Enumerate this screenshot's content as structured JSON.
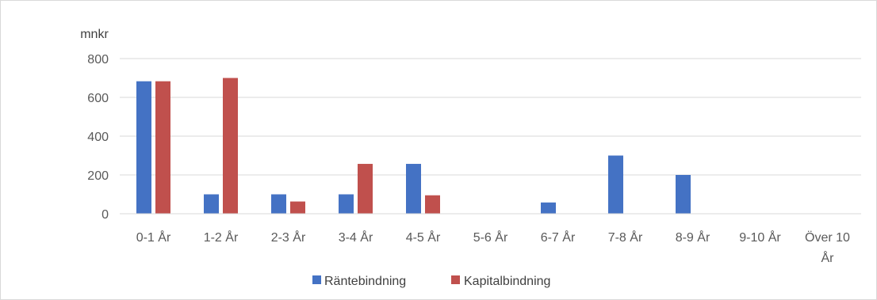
{
  "chart_data": {
    "type": "bar",
    "title": "",
    "unit_label": "mnkr",
    "xlabel": "",
    "ylabel": "",
    "categories": [
      [
        "0-1 År"
      ],
      [
        "1-2 År"
      ],
      [
        "2-3 År"
      ],
      [
        "3-4 År"
      ],
      [
        "4-5 År"
      ],
      [
        "5-6 År"
      ],
      [
        "6-7 År"
      ],
      [
        "7-8 År"
      ],
      [
        "8-9 År"
      ],
      [
        "9-10 År"
      ],
      [
        "Över 10",
        "År"
      ]
    ],
    "series": [
      {
        "name": "Räntebindning",
        "color": "#4472c4",
        "values": [
          683,
          100,
          100,
          100,
          257,
          0,
          58,
          300,
          200,
          0,
          0
        ]
      },
      {
        "name": "Kapitalbindning",
        "color": "#c0504d",
        "values": [
          683,
          700,
          63,
          257,
          95,
          0,
          0,
          0,
          0,
          0,
          0
        ]
      }
    ],
    "ylim": [
      0,
      800
    ],
    "yticks": [
      "0",
      "200",
      "400",
      "600",
      "800"
    ],
    "grid": true,
    "legend_position": "bottom"
  }
}
